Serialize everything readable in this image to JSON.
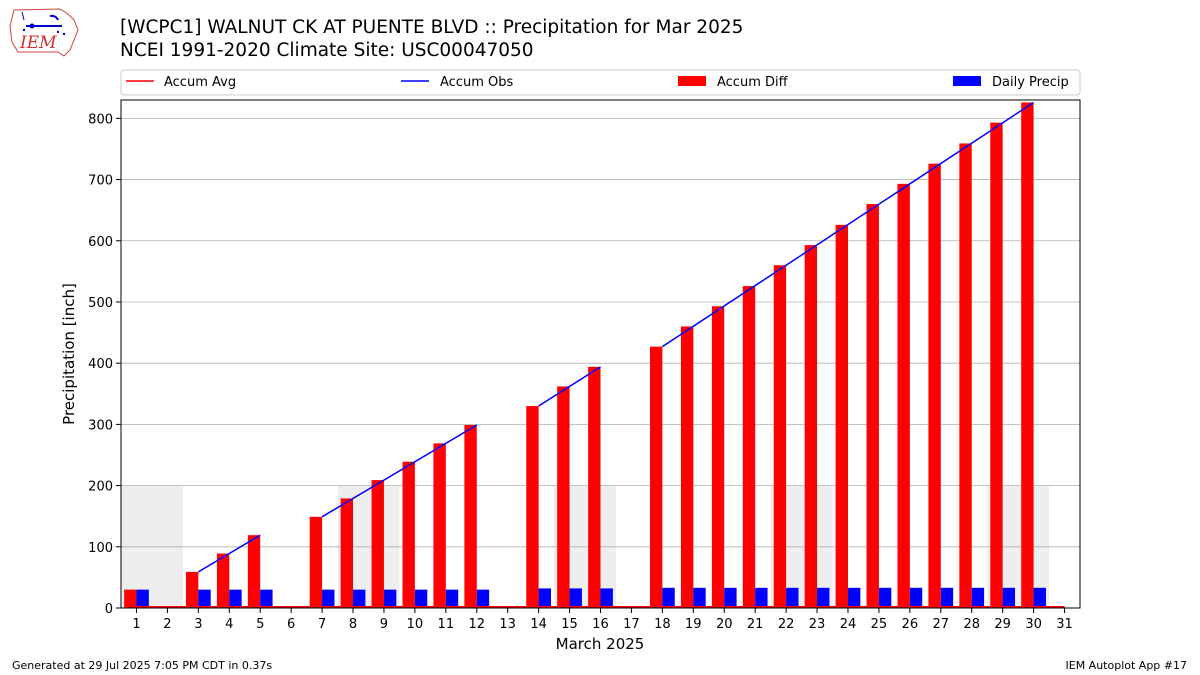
{
  "header": {
    "title_line1": "[WCPC1] WALNUT CK AT PUENTE BLVD :: Precipitation for Mar 2025",
    "title_line2": "NCEI 1991-2020 Climate Site: USC00047050",
    "logo_text": "IEM"
  },
  "footer": {
    "generated": "Generated at 29 Jul 2025 7:05 PM CDT in 0.37s",
    "app": "IEM Autoplot App #17"
  },
  "colors": {
    "accum_avg": "#ff0000",
    "accum_obs": "#0000ff",
    "accum_diff": "#ff0000",
    "daily_precip": "#0000ff",
    "shade": "#eeeeee",
    "grid": "#b0b0b0"
  },
  "chart_data": {
    "type": "bar",
    "xlabel": "March 2025",
    "ylabel": "Precipitation [inch]",
    "xlim": [
      0.5,
      31.5
    ],
    "ylim": [
      0,
      830
    ],
    "yticks": [
      0,
      100,
      200,
      300,
      400,
      500,
      600,
      700,
      800
    ],
    "grid": true,
    "legend_placement": "top",
    "legend": [
      "Accum Avg",
      "Accum Obs",
      "Accum Diff",
      "Daily Precip"
    ],
    "days": [
      1,
      2,
      3,
      4,
      5,
      6,
      7,
      8,
      9,
      10,
      11,
      12,
      13,
      14,
      15,
      16,
      17,
      18,
      19,
      20,
      21,
      22,
      23,
      24,
      25,
      26,
      27,
      28,
      29,
      30,
      31
    ],
    "shaded_day_ranges": [
      [
        1,
        2
      ],
      [
        8,
        9
      ],
      [
        15,
        16
      ],
      [
        22,
        23
      ],
      [
        29,
        30
      ]
    ],
    "shaded_height": 200,
    "series": [
      {
        "name": "Accum Diff",
        "kind": "bar",
        "values": [
          30,
          2,
          59,
          89,
          119,
          2,
          149,
          179,
          209,
          239,
          269,
          299,
          3,
          330,
          362,
          394,
          3,
          427,
          460,
          493,
          526,
          560,
          593,
          626,
          660,
          693,
          726,
          759,
          793,
          826,
          3
        ]
      },
      {
        "name": "Daily Precip",
        "kind": "bar",
        "values": [
          30,
          0,
          30,
          30,
          30,
          0,
          30,
          30,
          30,
          30,
          30,
          30,
          0,
          32,
          32,
          32,
          0,
          33,
          33,
          33,
          33,
          33,
          33,
          33,
          33,
          33,
          33,
          33,
          33,
          33,
          0
        ]
      },
      {
        "name": "Accum Obs",
        "kind": "line",
        "segments": [
          [
            [
              3,
              59
            ],
            [
              5,
              119
            ]
          ],
          [
            [
              7,
              149
            ],
            [
              12,
              299
            ]
          ],
          [
            [
              14,
              330
            ],
            [
              16,
              394
            ]
          ],
          [
            [
              18,
              427
            ],
            [
              30,
              826
            ]
          ]
        ]
      },
      {
        "name": "Accum Avg",
        "kind": "line",
        "values": [
          2,
          2,
          2,
          2,
          2,
          2,
          2,
          2,
          2,
          2,
          2,
          2,
          2,
          2,
          2,
          2,
          2,
          2,
          2,
          2,
          2,
          2,
          2,
          2,
          2,
          2,
          2,
          2,
          2,
          2,
          2
        ]
      }
    ]
  }
}
